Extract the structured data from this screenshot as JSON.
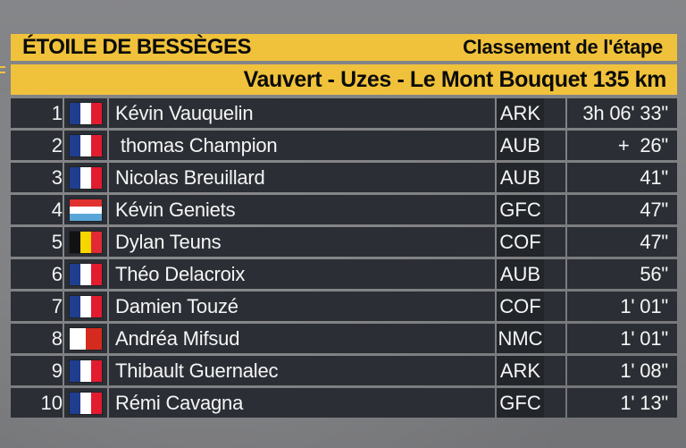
{
  "header": {
    "race_title": "ÉTOILE DE BESSÈGES",
    "classification_title": "Classement de l'étape",
    "route_title": "Vauvert - Uzes - Le Mont Bouquet 135 km"
  },
  "flags": {
    "fr": {
      "icon": "france-flag-icon",
      "colors": [
        "#1f3e8f",
        "#ffffff",
        "#e21b2f"
      ]
    },
    "lu": {
      "icon": "luxembourg-flag-icon",
      "colors": [
        "#e0322f",
        "#ffffff",
        "#5aa5d7"
      ]
    },
    "be": {
      "icon": "belgium-flag-icon",
      "colors": [
        "#121212",
        "#f7d600",
        "#e12a34"
      ]
    },
    "mt": {
      "icon": "malta-flag-icon",
      "colors": [
        "#ffffff",
        "#d52b1e"
      ]
    }
  },
  "rows": [
    {
      "rank": "1",
      "flag": "fr",
      "name": "Kévin Vauquelin",
      "team": "ARK",
      "time": "3h 06' 33\""
    },
    {
      "rank": "2",
      "flag": "fr",
      "name": " thomas Champion",
      "team": "AUB",
      "time": "+  26\""
    },
    {
      "rank": "3",
      "flag": "fr",
      "name": "Nicolas Breuillard",
      "team": "AUB",
      "time": "41\""
    },
    {
      "rank": "4",
      "flag": "lu",
      "name": "Kévin Geniets",
      "team": "GFC",
      "time": "47\""
    },
    {
      "rank": "5",
      "flag": "be",
      "name": "Dylan Teuns",
      "team": "COF",
      "time": "47\""
    },
    {
      "rank": "6",
      "flag": "fr",
      "name": "Théo Delacroix",
      "team": "AUB",
      "time": "56\""
    },
    {
      "rank": "7",
      "flag": "fr",
      "name": "Damien Touzé",
      "team": "COF",
      "time": "1' 01\""
    },
    {
      "rank": "8",
      "flag": "mt",
      "name": "Andréa Mifsud",
      "team": "NMC",
      "time": "1' 01\""
    },
    {
      "rank": "9",
      "flag": "fr",
      "name": "Thibault Guernalec",
      "team": "ARK",
      "time": "1' 08\""
    },
    {
      "rank": "10",
      "flag": "fr",
      "name": "Rémi Cavagna",
      "team": "GFC",
      "time": "1' 13\""
    }
  ]
}
